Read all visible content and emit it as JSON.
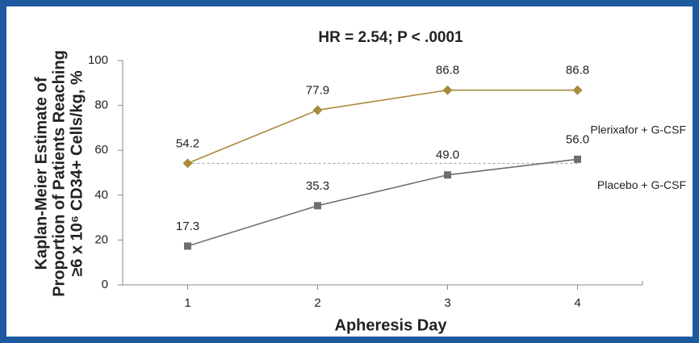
{
  "chart_data": {
    "type": "line",
    "title": "HR = 2.54; P < .0001",
    "ylabel": [
      "Kaplan-Meier Estimate of",
      "Proportion of Patients Reaching",
      "≥6 x 10⁶ CD34+ Cells/kg, %"
    ],
    "xlabel": "Apheresis Day",
    "x": [
      1,
      2,
      3,
      4
    ],
    "series": [
      {
        "name": "Plerixafor + G-CSF",
        "color": "#a98b3c",
        "marker": "diamond",
        "values": [
          54.2,
          77.9,
          86.8,
          86.8
        ],
        "value_labels": [
          "54.2",
          "77.9",
          "86.8",
          "86.8"
        ]
      },
      {
        "name": "Placebo + G-CSF",
        "color": "#6e6e6e",
        "marker": "square",
        "values": [
          17.3,
          35.3,
          49.0,
          56.0
        ],
        "value_labels": [
          "17.3",
          "35.3",
          "49.0",
          "56.0"
        ]
      }
    ],
    "xlim": [
      0.5,
      4.5
    ],
    "xticks": [
      1,
      2,
      3,
      4
    ],
    "ylim": [
      0,
      100
    ],
    "yticks": [
      0,
      20,
      40,
      60,
      80,
      100
    ],
    "grid": false
  }
}
